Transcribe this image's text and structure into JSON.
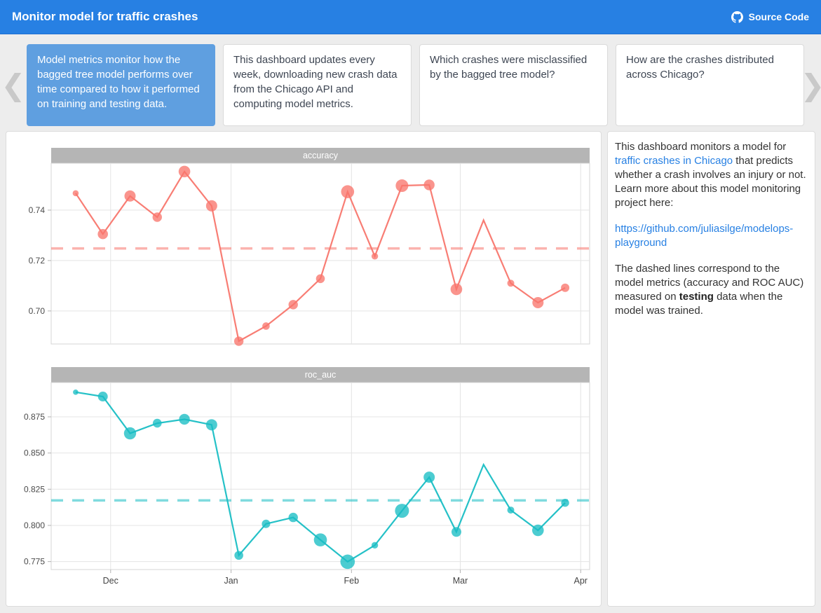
{
  "header": {
    "title": "Monitor model for traffic crashes",
    "source_code_label": "Source Code"
  },
  "colors": {
    "navbar": "#2780e3",
    "active_card": "#5f9fe0",
    "facet_strip": "#b5b5b5",
    "accuracy_series": "#f8766d",
    "roc_auc_series": "#19bec4",
    "link": "#2780e3"
  },
  "storyboard": {
    "cards": [
      {
        "text": "Model metrics monitor how the bagged tree model performs over time compared to how it performed on training and testing data.",
        "active": true
      },
      {
        "text": "This dashboard updates every week, downloading new crash data from the Chicago API and computing model metrics.",
        "active": false
      },
      {
        "text": "Which crashes were misclassified by the bagged tree model?",
        "active": false
      },
      {
        "text": "How are the crashes distributed across Chicago?",
        "active": false
      }
    ]
  },
  "side_panel": {
    "p1_segments": [
      {
        "text": "This dashboard monitors a model for ",
        "style": "plain"
      },
      {
        "text": "traffic crashes in Chicago",
        "style": "link"
      },
      {
        "text": " that predicts whether a crash involves an injury or not. Learn more about this model monitoring project here:",
        "style": "plain"
      }
    ],
    "repo_link": "https://github.com/juliasilge/modelops-playground",
    "p3_segments": [
      {
        "text": "The dashed lines correspond to the model metrics (accuracy and ROC AUC) measured on ",
        "style": "plain"
      },
      {
        "text": "testing",
        "style": "bold"
      },
      {
        "text": " data when the model was trained.",
        "style": "plain"
      }
    ]
  },
  "chart_data": {
    "type": "line",
    "x_days": [
      0,
      7,
      14,
      21,
      28,
      35,
      42,
      49,
      56,
      63,
      70,
      77,
      84,
      91,
      98,
      105,
      112,
      119,
      126
    ],
    "x_domain_days": [
      -6.3,
      132.3
    ],
    "month_ticks": [
      {
        "label": "Dec",
        "day": 9
      },
      {
        "label": "Jan",
        "day": 40
      },
      {
        "label": "Feb",
        "day": 71
      },
      {
        "label": "Mar",
        "day": 99
      },
      {
        "label": "Apr",
        "day": 130
      }
    ],
    "panels": [
      {
        "title": "accuracy",
        "color": "#f8766d",
        "ylim": [
          0.6869,
          0.7586
        ],
        "yticks": [
          {
            "label": "0.70",
            "value": 0.7
          },
          {
            "label": "0.72",
            "value": 0.72
          },
          {
            "label": "0.74",
            "value": 0.74
          }
        ],
        "ref_dashed_value": 0.7248,
        "values": [
          0.7467,
          0.7305,
          0.7456,
          0.7372,
          0.7553,
          0.7417,
          0.688,
          0.694,
          0.7025,
          0.7128,
          0.7473,
          0.7217,
          0.7497,
          0.75,
          0.7086,
          0.736,
          0.711,
          0.7033,
          0.7092
        ],
        "marker_radius_px": [
          4.3,
          7.3,
          8,
          6.7,
          8.3,
          8,
          6.7,
          5.3,
          6.7,
          6.3,
          9.3,
          4.7,
          9,
          7.7,
          8.3,
          0,
          5,
          8,
          6
        ]
      },
      {
        "title": "roc_auc",
        "color": "#19bec4",
        "ylim": [
          0.7695,
          0.8987
        ],
        "yticks": [
          {
            "label": "0.775",
            "value": 0.775
          },
          {
            "label": "0.800",
            "value": 0.8
          },
          {
            "label": "0.825",
            "value": 0.825
          },
          {
            "label": "0.850",
            "value": 0.85
          },
          {
            "label": "0.875",
            "value": 0.875
          }
        ],
        "ref_dashed_value": 0.8173,
        "values": [
          0.892,
          0.889,
          0.8636,
          0.8706,
          0.8733,
          0.8695,
          0.7793,
          0.8011,
          0.8055,
          0.79,
          0.7749,
          0.7863,
          0.8101,
          0.8333,
          0.7955,
          0.842,
          0.8106,
          0.7966,
          0.8156
        ],
        "marker_radius_px": [
          3.8,
          7,
          8.7,
          6.3,
          7.7,
          8,
          6.3,
          6,
          6.7,
          9.3,
          10.3,
          4.7,
          10,
          8,
          7,
          0,
          5,
          8.3,
          5.7
        ]
      }
    ]
  }
}
